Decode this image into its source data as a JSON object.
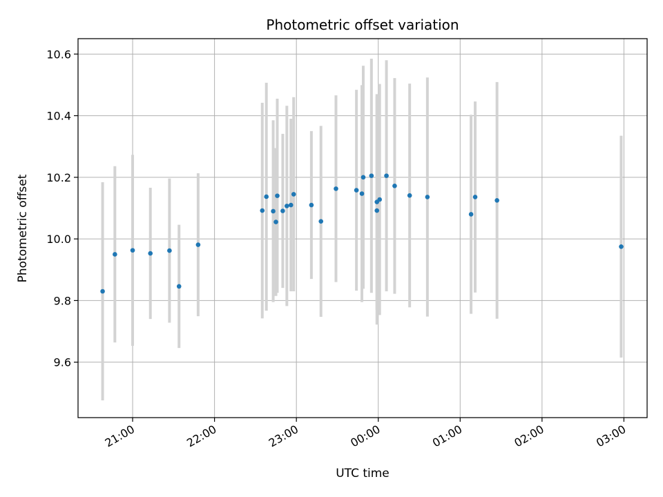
{
  "chart_data": {
    "type": "scatter",
    "title": "Photometric offset variation",
    "xlabel": "UTC time",
    "ylabel": "Photometric offset",
    "x_axis": "time",
    "xlim": [
      "20:20",
      "03:17"
    ],
    "ylim": [
      9.42,
      10.65
    ],
    "grid": true,
    "x_ticks": [
      "21:00",
      "22:00",
      "23:00",
      "00:00",
      "01:00",
      "02:00",
      "03:00"
    ],
    "y_ticks": [
      "9.6",
      "9.8",
      "10.0",
      "10.2",
      "10.4",
      "10.6"
    ],
    "colors": {
      "points": "#1f77b4",
      "errorbars": "#d3d3d3",
      "grid": "#b0b0b0"
    },
    "series": [
      {
        "points": [
          {
            "x": "20:38",
            "y": 9.83,
            "yerr": 0.354
          },
          {
            "x": "20:47",
            "y": 9.95,
            "yerr": 0.286
          },
          {
            "x": "21:00",
            "y": 9.963,
            "yerr": 0.31
          },
          {
            "x": "21:13",
            "y": 9.953,
            "yerr": 0.213
          },
          {
            "x": "21:27",
            "y": 9.962,
            "yerr": 0.234
          },
          {
            "x": "21:34",
            "y": 9.846,
            "yerr": 0.2
          },
          {
            "x": "21:48",
            "y": 9.981,
            "yerr": 0.232
          },
          {
            "x": "22:35",
            "y": 10.092,
            "yerr": 0.35
          },
          {
            "x": "22:38",
            "y": 10.137,
            "yerr": 0.37
          },
          {
            "x": "22:43",
            "y": 10.09,
            "yerr": 0.295
          },
          {
            "x": "22:45",
            "y": 10.055,
            "yerr": 0.24
          },
          {
            "x": "22:46",
            "y": 10.14,
            "yerr": 0.315
          },
          {
            "x": "22:50",
            "y": 10.091,
            "yerr": 0.25
          },
          {
            "x": "22:53",
            "y": 10.107,
            "yerr": 0.325
          },
          {
            "x": "22:56",
            "y": 10.11,
            "yerr": 0.28
          },
          {
            "x": "22:58",
            "y": 10.145,
            "yerr": 0.315
          },
          {
            "x": "23:11",
            "y": 10.11,
            "yerr": 0.24
          },
          {
            "x": "23:18",
            "y": 10.057,
            "yerr": 0.31
          },
          {
            "x": "23:29",
            "y": 10.163,
            "yerr": 0.303
          },
          {
            "x": "23:44",
            "y": 10.158,
            "yerr": 0.326
          },
          {
            "x": "23:48",
            "y": 10.147,
            "yerr": 0.352
          },
          {
            "x": "23:49",
            "y": 10.2,
            "yerr": 0.362
          },
          {
            "x": "23:55",
            "y": 10.205,
            "yerr": 0.38
          },
          {
            "x": "23:59",
            "y": 10.12,
            "yerr": 0.35
          },
          {
            "x": "23:59",
            "y": 10.092,
            "yerr": 0.37
          },
          {
            "x": "00:01",
            "y": 10.128,
            "yerr": 0.375
          },
          {
            "x": "00:06",
            "y": 10.205,
            "yerr": 0.375
          },
          {
            "x": "00:12",
            "y": 10.172,
            "yerr": 0.35
          },
          {
            "x": "00:23",
            "y": 10.141,
            "yerr": 0.363
          },
          {
            "x": "00:36",
            "y": 10.136,
            "yerr": 0.388
          },
          {
            "x": "01:08",
            "y": 10.08,
            "yerr": 0.323
          },
          {
            "x": "01:11",
            "y": 10.136,
            "yerr": 0.31
          },
          {
            "x": "01:27",
            "y": 10.125,
            "yerr": 0.384
          },
          {
            "x": "02:58",
            "y": 9.975,
            "yerr": 0.36
          }
        ]
      }
    ]
  }
}
